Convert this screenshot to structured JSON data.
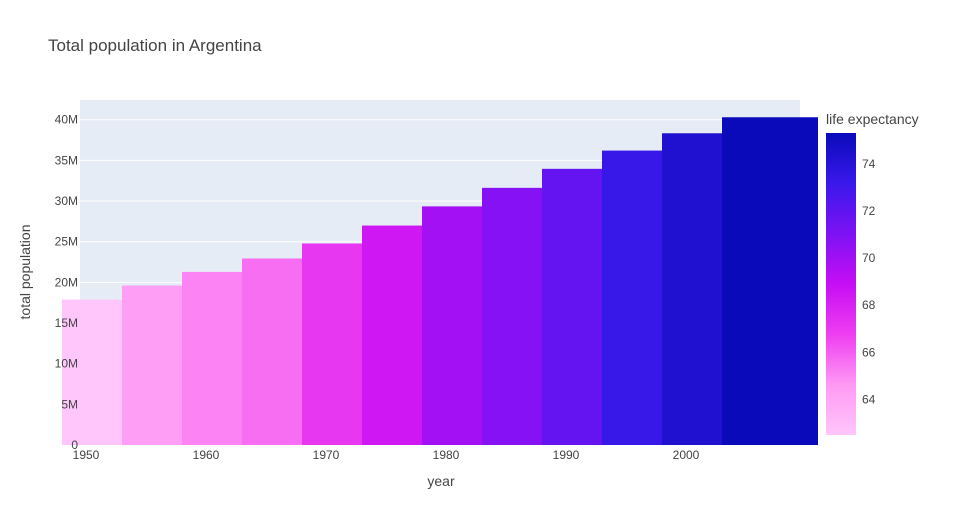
{
  "chart_data": {
    "type": "bar",
    "title": "Total population in Argentina",
    "xlabel": "year",
    "ylabel": "total population",
    "x": [
      1952,
      1957,
      1962,
      1967,
      1972,
      1977,
      1982,
      1987,
      1992,
      1997,
      2002,
      2007
    ],
    "values": [
      17876956,
      19610538,
      21283783,
      22934225,
      24779799,
      26983828,
      29341374,
      31620918,
      33958947,
      36203463,
      38331121,
      40301927
    ],
    "life_expectancy": [
      62.485,
      64.399,
      65.142,
      65.634,
      67.065,
      68.481,
      69.942,
      70.774,
      71.868,
      73.275,
      74.34,
      75.32
    ],
    "xlim": [
      1949.5,
      2009.5
    ],
    "ylim": [
      0,
      42423081
    ],
    "x_ticks": [
      1950,
      1960,
      1970,
      1980,
      1990,
      2000
    ],
    "x_tick_labels": [
      "1950",
      "1960",
      "1970",
      "1980",
      "1990",
      "2000"
    ],
    "y_ticks": [
      0,
      5000000,
      10000000,
      15000000,
      20000000,
      25000000,
      30000000,
      35000000,
      40000000
    ],
    "y_tick_labels": [
      "0",
      "5M",
      "10M",
      "15M",
      "20M",
      "25M",
      "30M",
      "35M",
      "40M"
    ],
    "grid": true,
    "colorbar": {
      "title": "life expectancy",
      "range": [
        62.485,
        75.32
      ],
      "ticks": [
        64,
        66,
        68,
        70,
        72,
        74
      ],
      "tick_labels": [
        "64",
        "66",
        "68",
        "70",
        "72",
        "74"
      ],
      "colorscale": [
        "#0d0887",
        "#46039f",
        "#7201a8",
        "#9c179e",
        "#bd3786",
        "#d8576b",
        "#ed7953",
        "#fb9f3a",
        "#fdca26",
        "#f0f921"
      ],
      "stops": [
        "#ffc6fb",
        "#ff99f4",
        "#ee3ef1",
        "#c60ef4",
        "#7d12f4",
        "#3a18eb",
        "#0a0aba"
      ]
    },
    "plot_bg": "#e5ecf6",
    "legend_position": "right"
  }
}
